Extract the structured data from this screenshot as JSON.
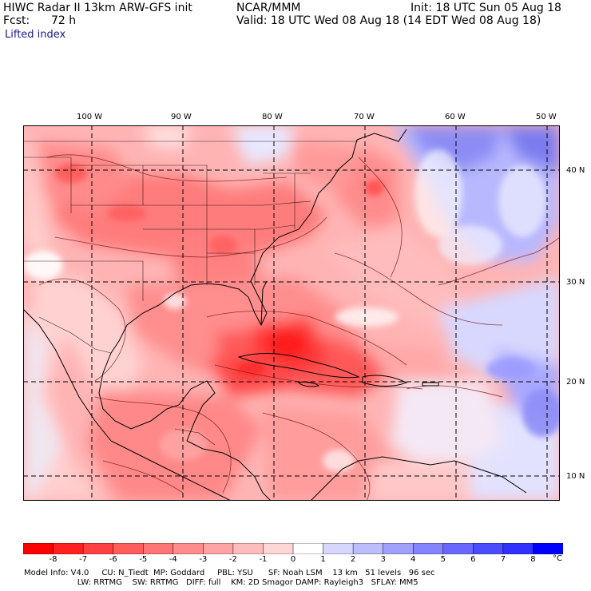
{
  "header": {
    "model_line": "HIWC Radar II 13km ARW-GFS init",
    "agency": "NCAR/MMM",
    "init": "Init: 18 UTC Sun 05 Aug 18",
    "fcst_label": "Fcst:",
    "fcst_value": "72 h",
    "valid": "Valid: 18 UTC Wed 08 Aug 18 (14 EDT Wed 08 Aug 18)",
    "field": "Lifted index"
  },
  "map": {
    "lon_labels": [
      "100 W",
      "90 W",
      "80 W",
      "70 W",
      "60 W",
      "50 W"
    ],
    "lat_labels": [
      "40 N",
      "30 N",
      "20 N",
      "10 N"
    ]
  },
  "colorbar": {
    "ticks": [
      "-8",
      "-7",
      "-6",
      "-5",
      "-4",
      "-3",
      "-2",
      "-1",
      "0",
      "1",
      "2",
      "3",
      "4",
      "5",
      "6",
      "7",
      "8"
    ],
    "unit": "°C",
    "colors": [
      "#ff0000",
      "#ff2020",
      "#ff4040",
      "#ff5c5c",
      "#ff7474",
      "#ff8c8c",
      "#ffa4a4",
      "#ffbcbc",
      "#ffd6d6",
      "#ffffff",
      "#d6d6ff",
      "#bcbcff",
      "#a0a0ff",
      "#8484ff",
      "#6868ff",
      "#4c4cff",
      "#3030ff",
      "#0000ff"
    ]
  },
  "footer": {
    "line1": "Model Info: V4.0     CU: N_Tiedt  MP: Goddard     PBL: YSU      SF: Noah LSM    13 km   51 levels   96 sec",
    "line2": "                     LW: RRTMG    SW: RRTMG   DIFF: full    KM: 2D Smagor DAMP: Rayleigh3   SFLAY: MM5"
  }
}
